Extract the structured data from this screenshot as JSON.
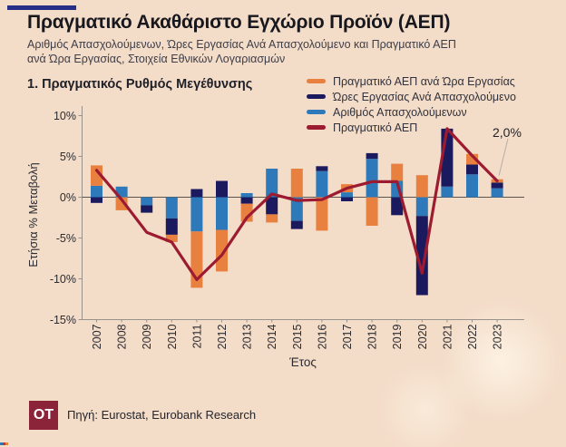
{
  "colors": {
    "background": "#f3dcc8",
    "top_bar": "#272e87",
    "logo": "#8c2439",
    "axis": "#97938c",
    "zero_line": "#5a5550",
    "annotation_connector": "#b7aea2"
  },
  "header": {
    "title": "Πραγματικό Ακαθάριστο Εγχώριο Προϊόν (ΑΕΠ)",
    "subtitle_line1": "Αριθμός Απασχολούμενων, Ώρες Εργασίας Ανά Απασχολούμενο και Πραγματικό ΑΕΠ",
    "subtitle_line2": "ανά Ώρα Εργασίας, Στοιχεία Εθνικών Λογαριασμών",
    "section_title": "1. Πραγματικός Ρυθμός Μεγέθυνσης"
  },
  "legend": {
    "items": [
      {
        "label": "Πραγματικό ΑΕΠ ανά Ώρα Εργασίας",
        "color": "#e8803f",
        "type": "bar"
      },
      {
        "label": "Ώρες Εργασίας Ανά Απασχολούμενο",
        "color": "#1c1a5e",
        "type": "bar"
      },
      {
        "label": "Αριθμός Απασχολούμενων",
        "color": "#2d79ba",
        "type": "bar"
      },
      {
        "label": "Πραγματικό ΑΕΠ",
        "color": "#9c1b30",
        "type": "line"
      }
    ]
  },
  "chart_data": {
    "type": "bar",
    "subtype": "stacked bars with overlaid line",
    "title": "1. Πραγματικός Ρυθμός Μεγέθυνσης",
    "xlabel": "Έτος",
    "ylabel": "Ετήσια % Μεταβολή",
    "ylim": [
      -15,
      10
    ],
    "grid": false,
    "legend_position": "top-right",
    "yticks": [
      {
        "value": 10,
        "label": "10%"
      },
      {
        "value": 5,
        "label": "5%"
      },
      {
        "value": 0,
        "label": "0%"
      },
      {
        "value": -5,
        "label": "-5%"
      },
      {
        "value": -10,
        "label": "-10%"
      },
      {
        "value": -15,
        "label": "-15%"
      }
    ],
    "categories": [
      "2007",
      "2008",
      "2009",
      "2010",
      "2011",
      "2012",
      "2013",
      "2014",
      "2015",
      "2016",
      "2017",
      "2018",
      "2019",
      "2020",
      "2021",
      "2022",
      "2023"
    ],
    "series": [
      {
        "name": "Αριθμός Απασχολούμενων",
        "color": "#2d79ba",
        "values": [
          1.4,
          1.3,
          -1.0,
          -2.6,
          -4.2,
          -4.0,
          0.5,
          3.5,
          -2.9,
          3.2,
          0.6,
          4.7,
          2.0,
          -2.3,
          1.3,
          2.8,
          1.1
        ]
      },
      {
        "name": "Ώρες Εργασίας Ανά Απασχολούμενο",
        "color": "#1c1a5e",
        "values": [
          -0.7,
          0.0,
          -0.9,
          -2.0,
          1.0,
          2.0,
          -0.8,
          -2.1,
          -1.0,
          0.6,
          -0.5,
          0.7,
          -2.2,
          -9.7,
          7.1,
          1.2,
          0.7
        ]
      },
      {
        "name": "Πραγματικό ΑΕΠ ανά Ώρα Εργασίας",
        "color": "#e8803f",
        "values": [
          2.5,
          -1.6,
          0.0,
          -0.9,
          -6.9,
          -5.1,
          -2.2,
          -1.0,
          3.5,
          -4.1,
          1.0,
          -3.5,
          2.1,
          2.7,
          0.0,
          1.3,
          0.4
        ]
      }
    ],
    "line_series": {
      "name": "Πραγματικό ΑΕΠ",
      "color": "#9c1b30",
      "values": [
        3.3,
        -0.3,
        -4.3,
        -5.5,
        -10.1,
        -7.1,
        -2.5,
        0.4,
        -0.4,
        -0.3,
        1.1,
        1.9,
        1.9,
        -9.3,
        8.4,
        5.1,
        2.0
      ]
    },
    "annotation": {
      "text": "2,0%",
      "year": "2023",
      "value": 2.0
    }
  },
  "footer": {
    "logo_text": "OT",
    "source": "Πηγή: Eurostat, Eurobank Research"
  }
}
